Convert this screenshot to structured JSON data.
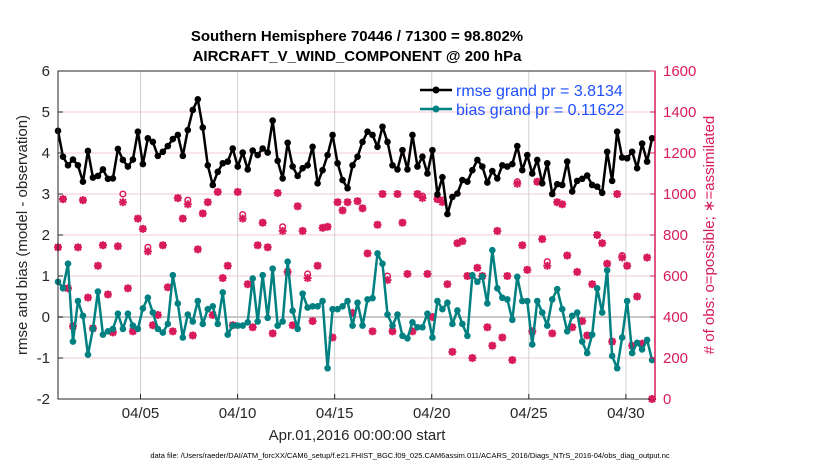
{
  "chart_data": {
    "type": "line",
    "title": [
      "Southern Hemisphere 70446 / 71300 = 98.802%",
      "AIRCRAFT_V_WIND_COMPONENT @ 200 hPa"
    ],
    "xlabel": "Apr.01,2016 00:00:00 start",
    "ylabel": "rmse and bias (model - observation)",
    "ylabel_right": "# of obs: o=possible; ∗=assimilated",
    "footer": "data file: /Users/raeder/DAI/ATM_forcXX/CAM6_setup/f.e21.FHIST_BGC.f09_025.CAM6assim.011/ACARS_2016/Diags_NTrS_2016-04/obs_diag_output.nc",
    "x_range_days": [
      -0.25,
      30.5
    ],
    "x_ticks": [
      {
        "day": 4,
        "label": "04/05"
      },
      {
        "day": 9,
        "label": "04/10"
      },
      {
        "day": 14,
        "label": "04/15"
      },
      {
        "day": 19,
        "label": "04/20"
      },
      {
        "day": 24,
        "label": "04/25"
      },
      {
        "day": 29,
        "label": "04/30"
      }
    ],
    "ylim": [
      -2,
      6
    ],
    "y_ticks": [
      "-2",
      "-1",
      "0",
      "1",
      "2",
      "3",
      "4",
      "5",
      "6"
    ],
    "ylim_right": [
      0,
      1600
    ],
    "y_ticks_right": [
      "0",
      "200",
      "400",
      "600",
      "800",
      "1000",
      "1200",
      "1400",
      "1600"
    ],
    "grid": true,
    "legend_position": "top-right",
    "colors": {
      "rmse": "#000000",
      "bias": "#008080",
      "obs": "#d81b5c",
      "legend_text": "#1f4fff",
      "vgrid": "#d0d0d0",
      "hgrid": "#f3c8d6"
    },
    "series": [
      {
        "name": "rmse grand pr = 3.8134",
        "values": [
          4.54,
          3.91,
          3.7,
          3.84,
          3.7,
          3.3,
          4.05,
          3.4,
          3.44,
          3.6,
          3.37,
          3.38,
          4.1,
          3.83,
          3.67,
          3.84,
          4.52,
          3.73,
          4.36,
          4.27,
          3.93,
          4.03,
          4.17,
          4.34,
          4.44,
          3.93,
          4.56,
          5.05,
          5.31,
          4.62,
          3.7,
          3.22,
          3.54,
          3.75,
          3.79,
          4.11,
          3.67,
          4.01,
          3.6,
          4.06,
          3.95,
          4.11,
          4.01,
          4.79,
          3.81,
          3.38,
          4.25,
          3.67,
          3.44,
          3.63,
          3.7,
          4.15,
          3.26,
          3.58,
          3.95,
          4.44,
          3.75,
          3.34,
          3.14,
          3.7,
          3.91,
          4.27,
          4.52,
          4.44,
          4.15,
          4.64,
          4.27,
          3.7,
          3.6,
          4.07,
          3.6,
          4.44,
          3.67,
          3.91,
          3.5,
          4.07,
          2.99,
          3.41,
          2.51,
          2.93,
          3.01,
          3.34,
          3.3,
          3.58,
          3.83,
          3.67,
          3.28,
          3.56,
          3.38,
          3.7,
          3.67,
          3.73,
          4.17,
          3.58,
          3.95,
          3.5,
          3.83,
          3.26,
          3.75,
          3.0,
          3.24,
          3.22,
          3.79,
          3.06,
          3.32,
          3.37,
          3.45,
          3.22,
          3.18,
          3.03,
          4.03,
          3.32,
          4.52,
          3.89,
          3.87,
          4.03,
          3.63,
          4.23,
          3.79,
          4.36
        ]
      },
      {
        "name": "bias grand pr = 0.11622",
        "values": [
          0.86,
          0.7,
          1.3,
          -0.6,
          0.39,
          0.03,
          -0.92,
          -0.29,
          0.62,
          -0.43,
          -0.35,
          -0.29,
          0.08,
          -0.29,
          0.08,
          -0.21,
          -0.29,
          0.21,
          0.47,
          0.11,
          -0.29,
          -0.38,
          -0.17,
          1.02,
          0.33,
          -0.5,
          0.06,
          -0.11,
          0.39,
          -0.17,
          0.19,
          0.26,
          -0.17,
          0.6,
          -0.43,
          -0.21,
          -0.21,
          -0.21,
          -0.13,
          0.94,
          -0.11,
          1.02,
          -0.02,
          1.18,
          -0.21,
          -0.11,
          1.35,
          0.15,
          -0.29,
          0.57,
          0.23,
          0.26,
          0.26,
          0.39,
          -1.25,
          0.19,
          0.19,
          0.26,
          0.39,
          -0.21,
          0.35,
          -0.21,
          0.43,
          0.46,
          1.55,
          1.3,
          0.06,
          -0.21,
          0.06,
          -0.46,
          -0.52,
          -0.13,
          -0.25,
          -0.25,
          0.08,
          -0.5,
          0.39,
          0.19,
          0.35,
          -0.17,
          0.16,
          -0.17,
          -0.46,
          1.02,
          0.86,
          0.99,
          0.33,
          1.63,
          0.7,
          0.47,
          0.43,
          -0.07,
          0.98,
          0.39,
          0.39,
          -0.67,
          0.39,
          0.11,
          -0.21,
          0.43,
          0.68,
          0.19,
          -0.35,
          0.03,
          0.11,
          -0.6,
          -0.88,
          -0.43,
          0.7,
          0.11,
          1.14,
          -0.95,
          -1.25,
          -0.5,
          0.39,
          -0.88,
          -0.63,
          -0.79,
          -0.56,
          -1.05
        ]
      },
      {
        "name": "obs possible",
        "values": [
          740,
          975,
          540,
          355,
          740,
          970,
          495,
          345,
          650,
          750,
          510,
          325,
          745,
          1000,
          540,
          330,
          880,
          830,
          740,
          360,
          410,
          750,
          545,
          330,
          980,
          880,
          970,
          310,
          730,
          905,
          960,
          410,
          1010,
          590,
          650,
          360,
          1010,
          900,
          560,
          350,
          750,
          860,
          740,
          320,
          1005,
          840,
          620,
          360,
          940,
          820,
          610,
          380,
          650,
          835,
          840,
          300,
          960,
          920,
          960,
          420,
          965,
          930,
          710,
          330,
          850,
          1000,
          600,
          330,
          1000,
          860,
          610,
          330,
          1000,
          990,
          610,
          400,
          975,
          970,
          560,
          230,
          760,
          770,
          600,
          200,
          640,
          600,
          350,
          260,
          820,
          300,
          600,
          190,
          1060,
          750,
          630,
          330,
          1060,
          780,
          670,
          320,
          960,
          950,
          700,
          350,
          620,
          380,
          310,
          560,
          800,
          760,
          660,
          280,
          1000,
          700,
          650,
          260,
          500,
          270,
          690,
          0
        ]
      },
      {
        "name": "obs assimilated",
        "values": [
          740,
          975,
          540,
          355,
          740,
          970,
          495,
          345,
          650,
          750,
          510,
          325,
          745,
          960,
          540,
          330,
          880,
          830,
          720,
          360,
          410,
          750,
          545,
          330,
          980,
          880,
          950,
          310,
          730,
          905,
          960,
          410,
          1010,
          590,
          650,
          360,
          1010,
          880,
          560,
          350,
          750,
          860,
          740,
          320,
          1005,
          820,
          620,
          360,
          940,
          820,
          590,
          380,
          650,
          835,
          840,
          300,
          960,
          920,
          960,
          420,
          965,
          930,
          710,
          330,
          850,
          1000,
          580,
          330,
          1000,
          860,
          610,
          330,
          1000,
          980,
          610,
          400,
          975,
          960,
          560,
          230,
          760,
          770,
          600,
          200,
          640,
          600,
          350,
          260,
          820,
          300,
          600,
          190,
          1050,
          750,
          630,
          330,
          1060,
          780,
          650,
          320,
          960,
          950,
          700,
          350,
          620,
          380,
          310,
          560,
          800,
          760,
          660,
          280,
          1000,
          690,
          650,
          260,
          500,
          270,
          690,
          0
        ]
      }
    ]
  }
}
